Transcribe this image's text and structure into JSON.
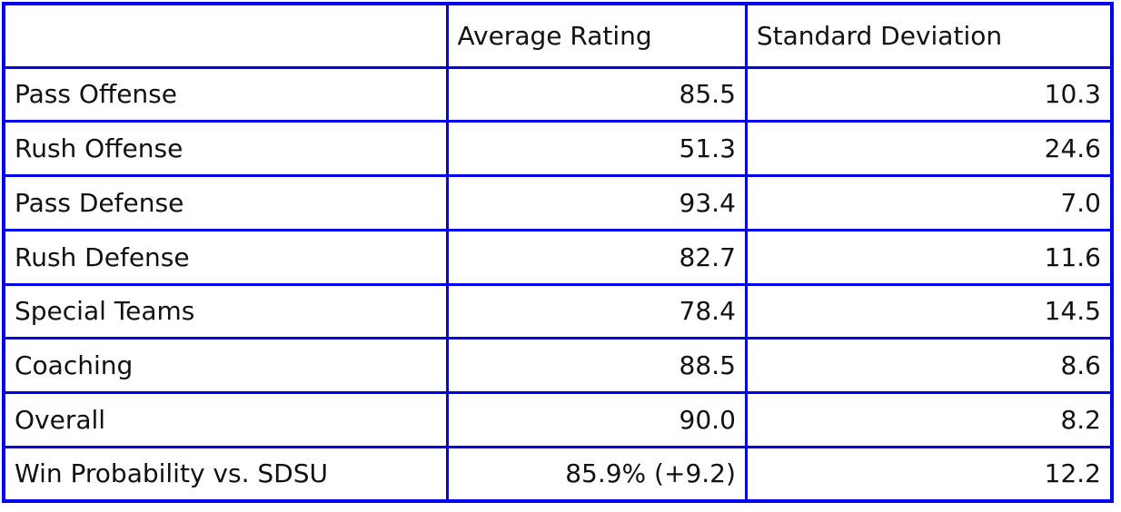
{
  "page": {
    "background": "#ffffff"
  },
  "colors": {
    "table_border": "#0000ee",
    "text": "#111111"
  },
  "table": {
    "columns": [
      "",
      "Average Rating",
      "Standard Deviation"
    ],
    "rows": [
      {
        "label": "Pass Offense",
        "avg": "85.5",
        "sd": "10.3"
      },
      {
        "label": "Rush Offense",
        "avg": "51.3",
        "sd": "24.6"
      },
      {
        "label": "Pass Defense",
        "avg": "93.4",
        "sd": "7.0"
      },
      {
        "label": "Rush Defense",
        "avg": "82.7",
        "sd": "11.6"
      },
      {
        "label": "Special Teams",
        "avg": "78.4",
        "sd": "14.5"
      },
      {
        "label": "Coaching",
        "avg": "88.5",
        "sd": "8.6"
      },
      {
        "label": "Overall",
        "avg": "90.0",
        "sd": "8.2"
      },
      {
        "label": "Win Probability vs. SDSU",
        "avg": "85.9% (+9.2)",
        "sd": "12.2"
      }
    ]
  },
  "chart_data": {
    "type": "table",
    "columns": [
      "",
      "Average Rating",
      "Standard Deviation"
    ],
    "rows": [
      [
        "Pass Offense",
        85.5,
        10.3
      ],
      [
        "Rush Offense",
        51.3,
        24.6
      ],
      [
        "Pass Defense",
        93.4,
        7.0
      ],
      [
        "Rush Defense",
        82.7,
        11.6
      ],
      [
        "Special Teams",
        78.4,
        14.5
      ],
      [
        "Coaching",
        88.5,
        8.6
      ],
      [
        "Overall",
        90.0,
        8.2
      ],
      [
        "Win Probability vs. SDSU",
        "85.9% (+9.2)",
        12.2
      ]
    ]
  }
}
